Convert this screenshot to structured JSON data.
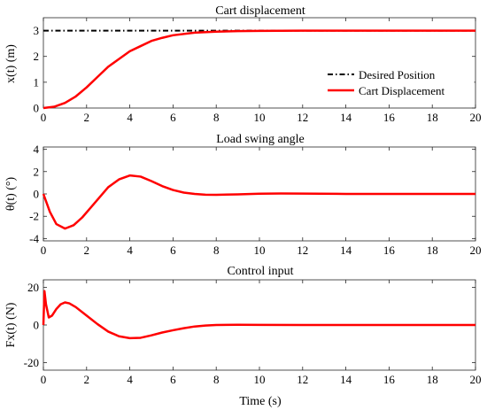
{
  "chart_data": [
    {
      "type": "line",
      "title": "Cart displacement",
      "ylabel": "x(t) (m)",
      "xlim": [
        0,
        20
      ],
      "ylim": [
        0,
        3.5
      ],
      "yticks": [
        0,
        1,
        2,
        3
      ],
      "legend_position": "bottom-right",
      "series": [
        {
          "name": "Desired Position",
          "color": "#000000",
          "dash": "dashdot",
          "x": [
            0,
            20
          ],
          "y": [
            3,
            3
          ]
        },
        {
          "name": "Cart Displacement",
          "color": "#ff0000",
          "x": [
            0,
            0.5,
            1,
            1.5,
            2,
            2.5,
            3,
            3.5,
            4,
            4.5,
            5,
            5.5,
            6,
            7,
            8,
            9,
            10,
            12,
            14,
            16,
            18,
            20
          ],
          "y": [
            0,
            0.05,
            0.2,
            0.45,
            0.8,
            1.2,
            1.6,
            1.9,
            2.2,
            2.4,
            2.6,
            2.72,
            2.82,
            2.92,
            2.96,
            2.98,
            2.99,
            3.0,
            3.0,
            3.0,
            3.0,
            3.0
          ]
        }
      ]
    },
    {
      "type": "line",
      "title": "Load swing angle",
      "ylabel": "θ(t) (°)",
      "xlim": [
        0,
        20
      ],
      "ylim": [
        -4.2,
        4.2
      ],
      "yticks": [
        -4,
        -2,
        0,
        2,
        4
      ],
      "series": [
        {
          "color": "#ff0000",
          "x": [
            0,
            0.3,
            0.6,
            1,
            1.4,
            1.8,
            2.2,
            2.6,
            3,
            3.5,
            4,
            4.5,
            5,
            5.5,
            6,
            6.5,
            7,
            7.5,
            8,
            9,
            10,
            11,
            12,
            14,
            16,
            18,
            20
          ],
          "y": [
            0,
            -1.6,
            -2.7,
            -3.1,
            -2.8,
            -2.1,
            -1.2,
            -0.3,
            0.6,
            1.3,
            1.65,
            1.55,
            1.15,
            0.7,
            0.35,
            0.12,
            0.0,
            -0.07,
            -0.08,
            -0.04,
            0.02,
            0.04,
            0.03,
            0.0,
            0.0,
            0.0,
            0.0
          ]
        }
      ]
    },
    {
      "type": "line",
      "title": "Control input",
      "ylabel": "Fx(t) (N)",
      "xlabel": "Time (s)",
      "xlim": [
        0,
        20
      ],
      "ylim": [
        -24,
        24
      ],
      "yticks": [
        -20,
        0,
        20
      ],
      "xticks": [
        0,
        2,
        4,
        6,
        8,
        10,
        12,
        14,
        16,
        18,
        20
      ],
      "series": [
        {
          "color": "#ff0000",
          "x": [
            0,
            0.05,
            0.12,
            0.25,
            0.4,
            0.6,
            0.8,
            1,
            1.2,
            1.5,
            2,
            2.5,
            3,
            3.5,
            4,
            4.5,
            5,
            5.5,
            6,
            6.5,
            7,
            7.5,
            8,
            9,
            10,
            12,
            14,
            16,
            18,
            20
          ],
          "y": [
            0,
            18,
            11,
            4,
            5,
            8.5,
            11,
            12,
            11.5,
            9.5,
            5,
            0.5,
            -3.5,
            -6,
            -7,
            -6.8,
            -5.5,
            -4,
            -2.8,
            -1.7,
            -0.8,
            -0.3,
            0.0,
            0.1,
            0.05,
            0.0,
            0.0,
            0.0,
            0.0,
            0.0
          ]
        }
      ]
    }
  ],
  "labels": {
    "plot1_title": "Cart displacement",
    "plot2_title": "Load swing angle",
    "plot3_title": "Control input",
    "plot1_ylabel": "x(t) (m)",
    "plot2_ylabel": "θ(t) (°)",
    "plot3_ylabel": "Fx(t) (N)",
    "xlabel": "Time (s)",
    "legend_desired": "Desired Position",
    "legend_cart": "Cart Displacement"
  }
}
